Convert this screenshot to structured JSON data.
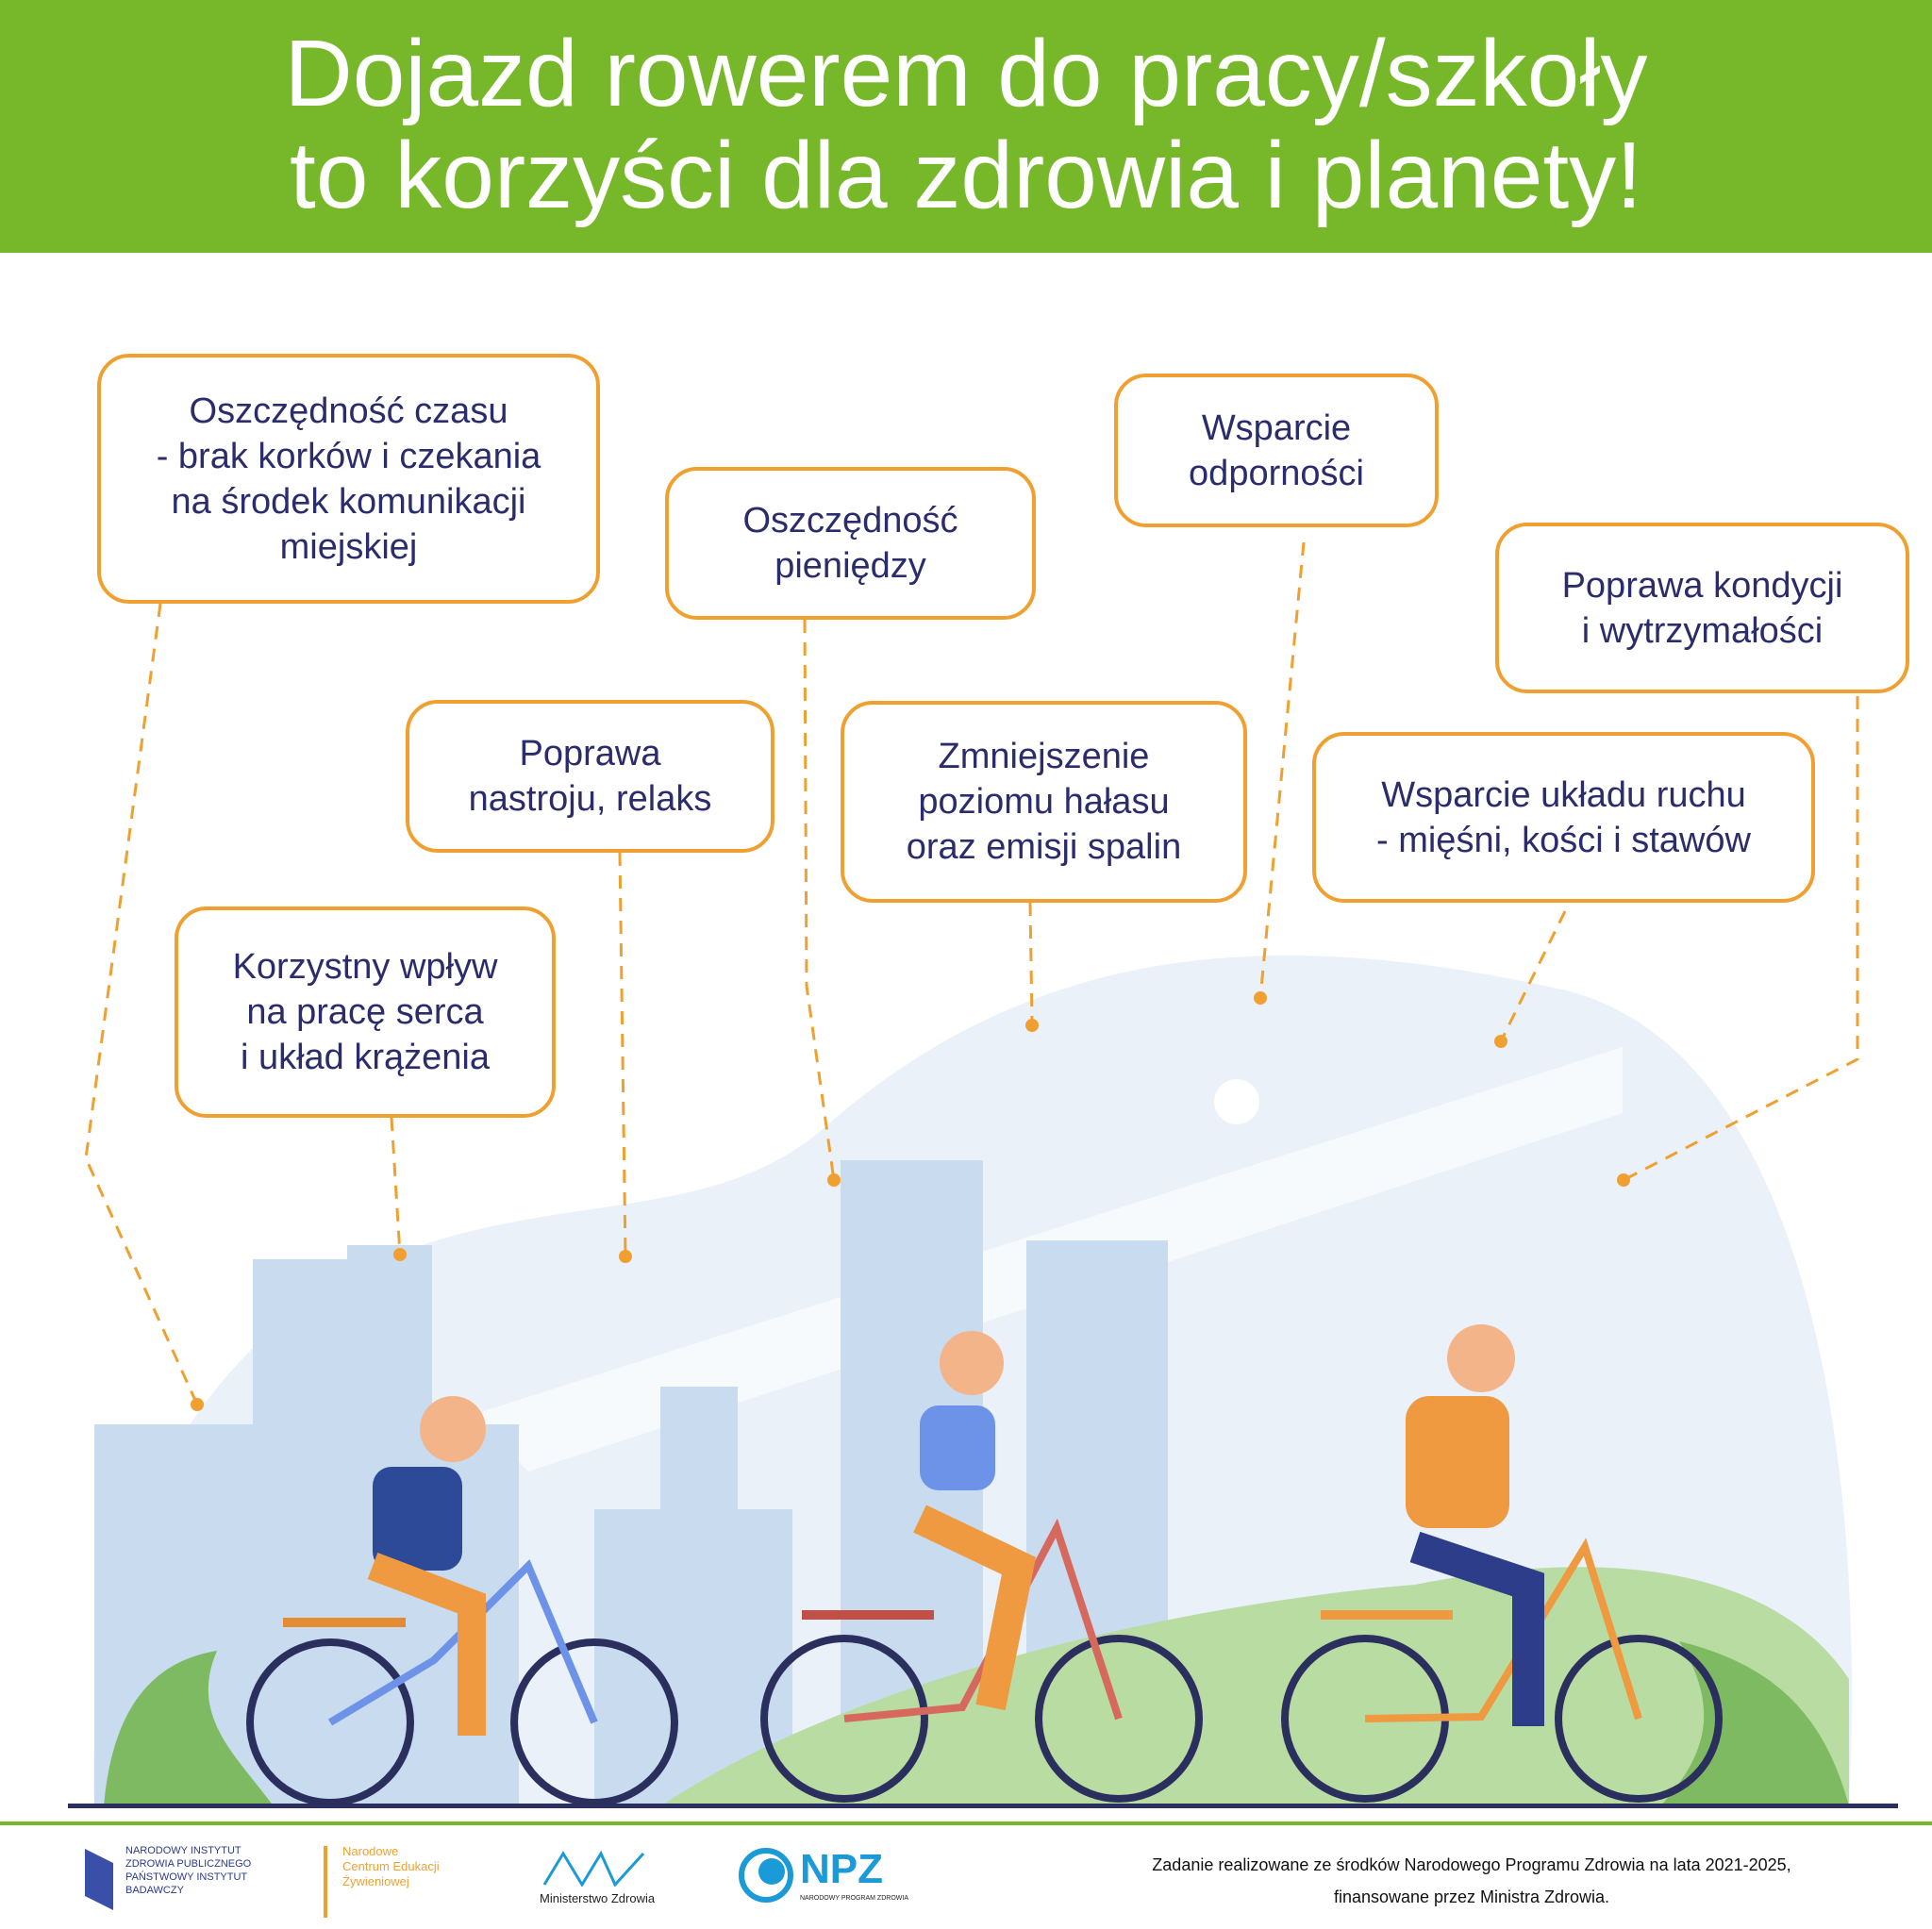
{
  "header": {
    "title_line1": "Dojazd rowerem do pracy/szkoły",
    "title_line2": "to korzyści dla zdrowia i planety!"
  },
  "benefits": [
    "Oszczędność czasu\n- brak korków i czekania\nna środek komunikacji\nmiejskiej",
    "Oszczędność\npieniędzy",
    "Wsparcie\nodporności",
    "Poprawa kondycji\ni wytrzymałości",
    "Poprawa\nnastroju, relaks",
    "Zmniejszenie\npoziomu hałasu\noraz emisji spalin",
    "Wsparcie układu ruchu\n- mięśni, kości i stawów",
    "Korzystny wpływ\nna pracę serca\ni układ krążenia"
  ],
  "footer": {
    "logos": {
      "nizp": "NARODOWY INSTYTUT ZDROWIA PUBLICZNEGO PAŃSTWOWY INSTYTUT BADAWCZY",
      "ncez": "Narodowe Centrum Edukacji Żywieniowej",
      "mz": "Ministerstwo Zdrowia",
      "npz": "NPZ",
      "npz_sub": "NARODOWY PROGRAM ZDROWIA"
    },
    "funding_line1": "Zadanie realizowane ze środków Narodowego Programu Zdrowia na lata 2021-2025,",
    "funding_line2": "finansowane przez Ministra Zdrowia."
  },
  "colors": {
    "green": "#76b82a",
    "orange": "#f0a030",
    "navy": "#2b2c6b"
  }
}
